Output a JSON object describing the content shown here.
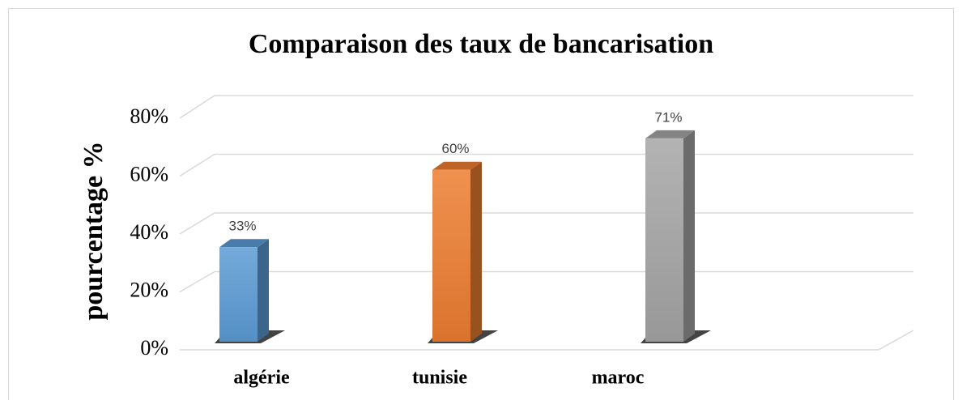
{
  "chart_data": {
    "type": "bar",
    "title": "Comparaison des taux de bancarisation",
    "y_axis_label": "pourcentage %",
    "categories": [
      "algérie",
      "tunisie",
      "maroc"
    ],
    "values": [
      33,
      60,
      71
    ],
    "value_labels": [
      "33%",
      "60%",
      "71%"
    ],
    "colors": [
      "#5b9bd5",
      "#ed7d31",
      "#a5a5a5"
    ],
    "ylim": [
      0,
      80
    ],
    "yticks": [
      {
        "value": 0,
        "label": "0%"
      },
      {
        "value": 20,
        "label": "20%"
      },
      {
        "value": 40,
        "label": "40%"
      },
      {
        "value": 60,
        "label": "60%"
      },
      {
        "value": 80,
        "label": "80%"
      }
    ],
    "grid": true
  }
}
